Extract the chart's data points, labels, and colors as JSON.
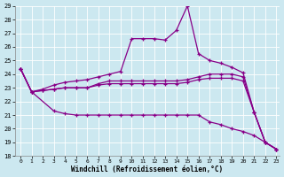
{
  "xlabel": "Windchill (Refroidissement éolien,°C)",
  "background_color": "#cce8f0",
  "line_color": "#880088",
  "xlim": [
    -0.5,
    23.3
  ],
  "ylim": [
    18,
    29
  ],
  "yticks": [
    18,
    19,
    20,
    21,
    22,
    23,
    24,
    25,
    26,
    27,
    28,
    29
  ],
  "xticks": [
    0,
    1,
    2,
    3,
    4,
    5,
    6,
    7,
    8,
    9,
    10,
    11,
    12,
    13,
    14,
    15,
    16,
    17,
    18,
    19,
    20,
    21,
    22,
    23
  ],
  "series": {
    "line_upper_x": [
      0,
      1,
      2,
      3,
      4,
      5,
      6,
      7,
      8,
      9,
      10,
      11,
      12,
      13,
      14,
      15,
      16,
      17,
      18,
      19,
      20,
      21,
      22,
      23
    ],
    "line_upper_y": [
      24.4,
      22.7,
      22.9,
      23.2,
      23.4,
      23.5,
      23.6,
      23.8,
      24.0,
      24.2,
      26.6,
      26.6,
      26.6,
      26.5,
      27.2,
      29.0,
      25.5,
      25.0,
      24.8,
      24.5,
      24.1,
      21.2,
      19.0,
      18.5
    ],
    "line_mid1_x": [
      0,
      1,
      2,
      3,
      4,
      5,
      6,
      7,
      8,
      9,
      10,
      11,
      12,
      13,
      14,
      15,
      16,
      17,
      18,
      19,
      20,
      21,
      22,
      23
    ],
    "line_mid1_y": [
      24.4,
      22.7,
      22.8,
      22.9,
      23.0,
      23.0,
      23.0,
      23.3,
      23.5,
      23.5,
      23.5,
      23.5,
      23.5,
      23.5,
      23.5,
      23.6,
      23.8,
      24.0,
      24.0,
      24.0,
      23.8,
      21.2,
      19.0,
      18.5
    ],
    "line_mid2_x": [
      0,
      1,
      2,
      3,
      4,
      5,
      6,
      7,
      8,
      9,
      10,
      11,
      12,
      13,
      14,
      15,
      16,
      17,
      18,
      19,
      20,
      21,
      22,
      23
    ],
    "line_mid2_y": [
      24.4,
      22.7,
      22.8,
      22.9,
      23.0,
      23.0,
      23.0,
      23.2,
      23.3,
      23.3,
      23.3,
      23.3,
      23.3,
      23.3,
      23.3,
      23.4,
      23.6,
      23.7,
      23.7,
      23.7,
      23.5,
      21.2,
      19.0,
      18.5
    ],
    "line_lower_x": [
      0,
      1,
      3,
      4,
      5,
      6,
      7,
      8,
      9,
      10,
      11,
      12,
      13,
      14,
      15,
      16,
      17,
      18,
      19,
      20,
      21,
      22,
      23
    ],
    "line_lower_y": [
      24.4,
      22.7,
      21.3,
      21.1,
      21.0,
      21.0,
      21.0,
      21.0,
      21.0,
      21.0,
      21.0,
      21.0,
      21.0,
      21.0,
      21.0,
      21.0,
      20.5,
      20.3,
      20.0,
      19.8,
      19.5,
      19.0,
      18.5
    ]
  }
}
